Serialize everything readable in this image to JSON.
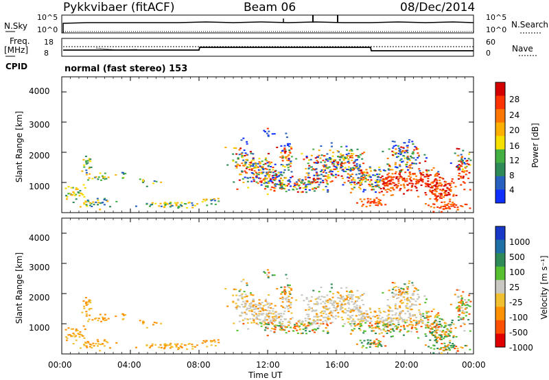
{
  "header": {
    "station": "Pykkvibaer (fitACF)",
    "beam": "Beam 06",
    "date": "08/Dec/2014"
  },
  "panels": {
    "nsky_label": "N.Sky",
    "nsky_ticks": [
      "10^5",
      "10^0"
    ],
    "nsearch_label": "N.Search",
    "nsearch_ticks": [
      "10^5",
      "10^0"
    ],
    "freq_label": "Freq.",
    "freq_unit": "[MHz]",
    "freq_ticks": [
      "18",
      "8"
    ],
    "nave_label": "Nave",
    "nave_ticks": [
      "60",
      "0"
    ],
    "cpid_label": "CPID",
    "cpid_text": "normal (fast stereo) 153"
  },
  "chart_data": [
    {
      "type": "heatmap",
      "name": "power",
      "ylabel": "Slant Range [km]",
      "xlabel": "",
      "y_ticks": [
        "4000",
        "3000",
        "2000",
        "1000"
      ],
      "colorbar": {
        "label": "Power [dB]",
        "ticks": [
          "28",
          "24",
          "20",
          "16",
          "12",
          "8",
          "4"
        ],
        "colors": [
          "#d40000",
          "#ff3300",
          "#ff7700",
          "#ffb000",
          "#f5e000",
          "#44b044",
          "#2e8b57",
          "#2860c0",
          "#1030ff"
        ]
      }
    },
    {
      "type": "heatmap",
      "name": "velocity",
      "ylabel": "Slant Range [km]",
      "xlabel": "Time UT",
      "x_ticks": [
        "00:00",
        "04:00",
        "08:00",
        "12:00",
        "16:00",
        "20:00",
        "00:00"
      ],
      "y_ticks": [
        "4000",
        "3000",
        "2000",
        "1000"
      ],
      "colorbar": {
        "label": "Velocity [m s⁻¹]",
        "ticks": [
          "1000",
          "500",
          "100",
          "25",
          "-25",
          "-100",
          "-500",
          "-1000"
        ],
        "colors": [
          "#1838c8",
          "#2070a8",
          "#2e8b57",
          "#56c030",
          "#c8c8c0",
          "#f0c030",
          "#ff9000",
          "#ff5000",
          "#e00000"
        ]
      }
    }
  ]
}
